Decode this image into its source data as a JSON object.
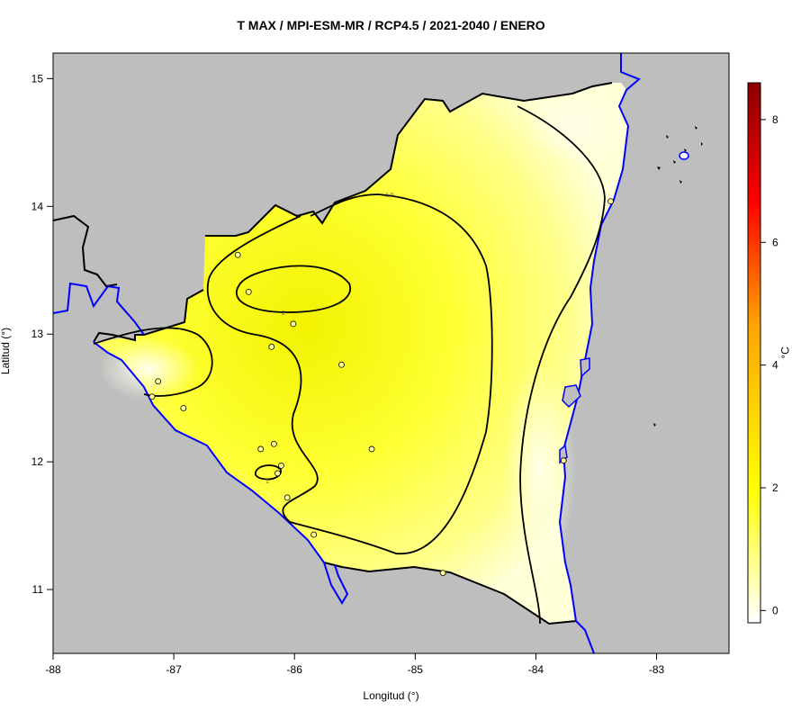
{
  "title": "T MAX / MPI-ESM-MR / RCP4.5 / 2021-2040 / ENERO",
  "xlabel": "Longitud (°)",
  "ylabel": "Latitud (°)",
  "unit": "°C",
  "colors": {
    "background_sea_land": "#bebebe",
    "coastline": "#0000ff",
    "border": "#000000",
    "scale_low": "#ffffff",
    "scale_mid": "#ffff00",
    "scale_high": "#ff0000",
    "scale_top": "#8b0000"
  },
  "chart_data": {
    "type": "heatmap",
    "title": "T MAX / MPI-ESM-MR / RCP4.5 / 2021-2040 / ENERO",
    "xlabel": "Longitud (°)",
    "ylabel": "Latitud (°)",
    "xlim": [
      -88,
      -82.4
    ],
    "ylim": [
      10.5,
      15.2
    ],
    "x_ticks": [
      -88,
      -87,
      -86,
      -85,
      -84,
      -83
    ],
    "y_ticks": [
      11,
      12,
      13,
      14,
      15
    ],
    "colorbar": {
      "label": "°C",
      "range": [
        -0.2,
        8.6
      ],
      "ticks": [
        0,
        2,
        4,
        6,
        8
      ]
    },
    "contour_labels": [
      "1.5",
      "2",
      "1"
    ],
    "stations": [
      {
        "lon": -86.47,
        "lat": 13.62
      },
      {
        "lon": -86.38,
        "lat": 13.33
      },
      {
        "lon": -86.01,
        "lat": 13.08
      },
      {
        "lon": -86.19,
        "lat": 12.9
      },
      {
        "lon": -85.61,
        "lat": 12.76
      },
      {
        "lon": -87.13,
        "lat": 12.63
      },
      {
        "lon": -87.18,
        "lat": 12.51
      },
      {
        "lon": -86.92,
        "lat": 12.42
      },
      {
        "lon": -86.17,
        "lat": 12.14
      },
      {
        "lon": -86.28,
        "lat": 12.1
      },
      {
        "lon": -85.36,
        "lat": 12.1
      },
      {
        "lon": -86.11,
        "lat": 11.97
      },
      {
        "lon": -86.14,
        "lat": 11.91
      },
      {
        "lon": -86.06,
        "lat": 11.72
      },
      {
        "lon": -85.84,
        "lat": 11.43
      },
      {
        "lon": -84.77,
        "lat": 11.13
      },
      {
        "lon": -83.77,
        "lat": 12.01
      },
      {
        "lon": -83.38,
        "lat": 14.04
      }
    ]
  }
}
